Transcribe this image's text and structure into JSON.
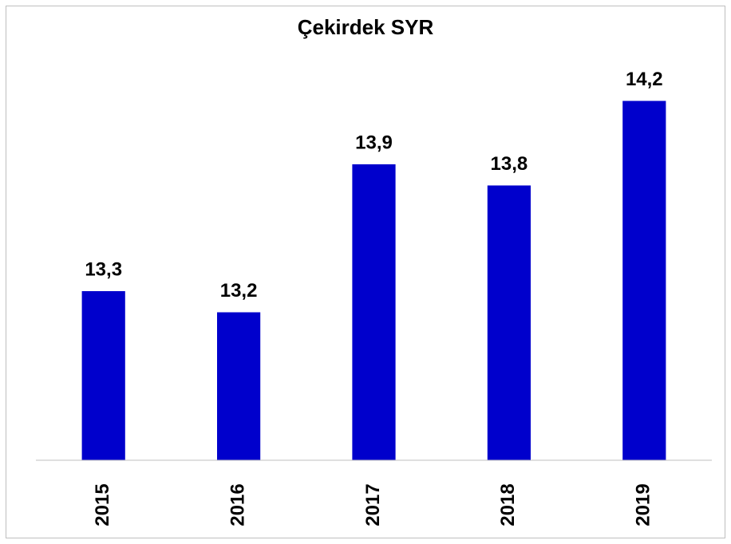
{
  "chart_data": {
    "type": "bar",
    "title": "Çekirdek SYR",
    "categories": [
      "2015",
      "2016",
      "2017",
      "2018",
      "2019"
    ],
    "values": [
      13.3,
      13.2,
      13.9,
      13.8,
      14.2
    ],
    "value_labels": [
      "13,3",
      "13,2",
      "13,9",
      "13,8",
      "14,2"
    ],
    "color": "#0000cc",
    "ylim": [
      12.5,
      14.3
    ]
  }
}
